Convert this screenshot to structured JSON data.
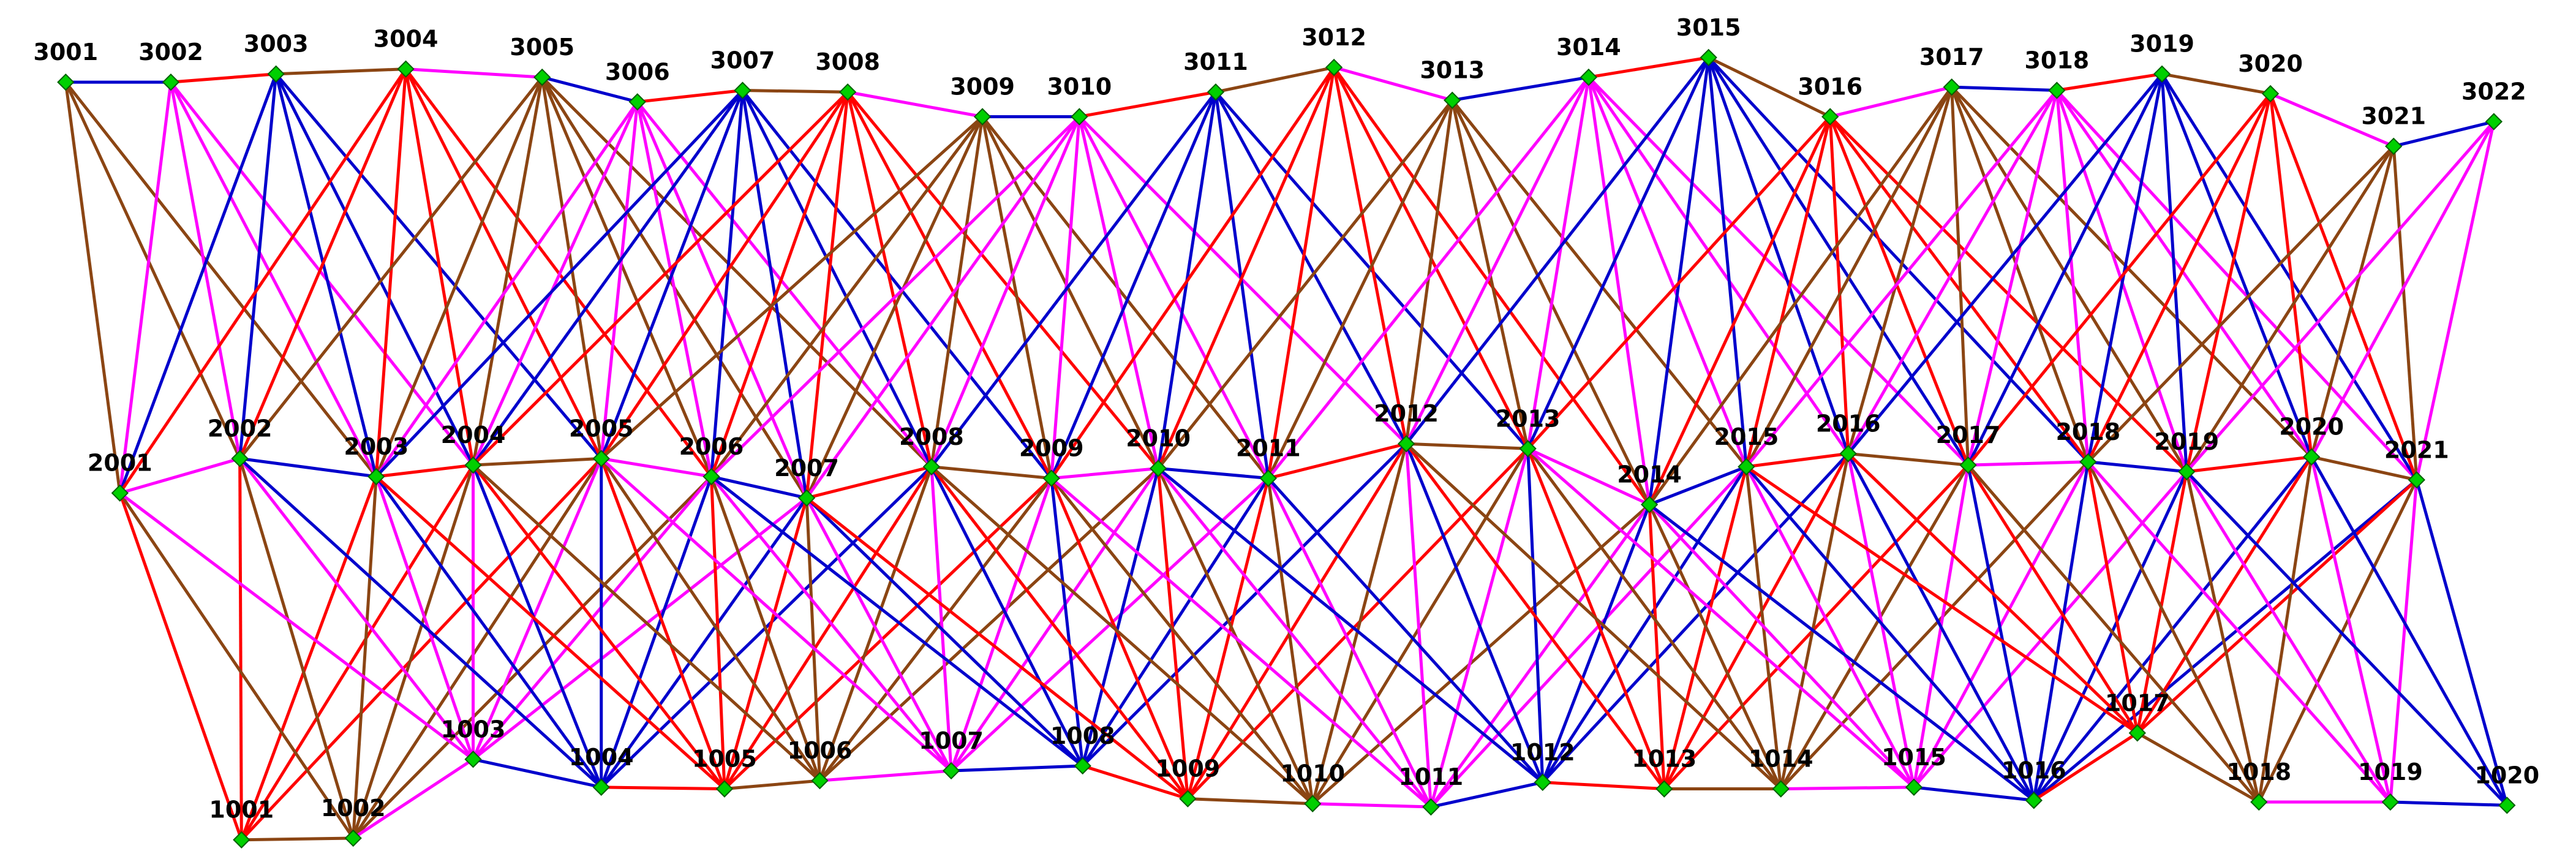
{
  "rows": {
    "top": [
      "3001",
      "3002",
      "3003",
      "3004",
      "3005",
      "3006",
      "3007",
      "3008",
      "3009",
      "3010",
      "3011",
      "3012",
      "3013",
      "3014",
      "3015",
      "3016",
      "3017",
      "3018",
      "3019",
      "3020",
      "3021",
      "3022"
    ],
    "middle": [
      "2001",
      "2002",
      "2003",
      "2004",
      "2005",
      "2006",
      "2007",
      "2008",
      "2009",
      "2010",
      "2011",
      "2012",
      "2013",
      "2014",
      "2015",
      "2016",
      "2017",
      "2018",
      "2019",
      "2020",
      "2021"
    ],
    "bottom": [
      "1001",
      "1002",
      "1003",
      "1004",
      "1005",
      "1006",
      "1007",
      "1008",
      "1009",
      "1010",
      "1011",
      "1012",
      "1013",
      "1014",
      "1015",
      "1016",
      "1017",
      "1018",
      "1019",
      "1020"
    ]
  }
}
